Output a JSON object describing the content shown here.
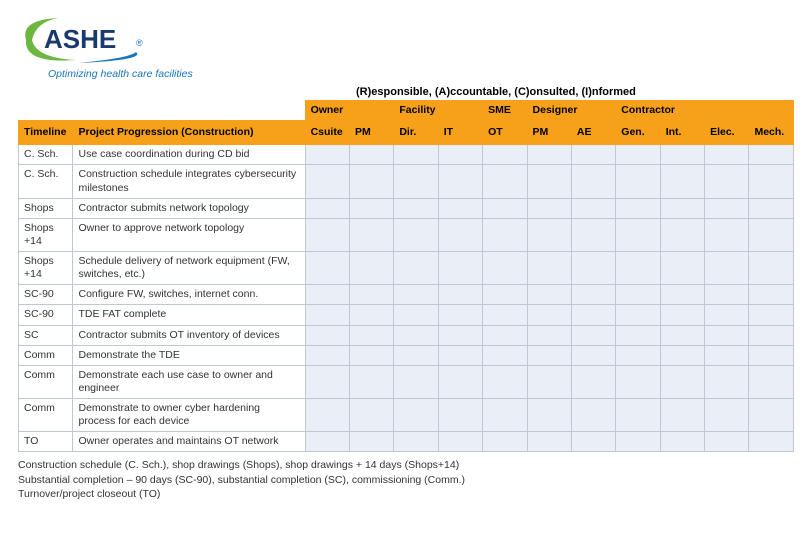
{
  "logo": {
    "name": "ASHE",
    "reg": "®",
    "tagline": "Optimizing health care facilities",
    "swoosh_color_outer": "#6bb742",
    "swoosh_color_inner": "#1a75bc",
    "text_color": "#1a3a6e"
  },
  "raci_caption": "(R)esponsible, (A)ccountable, (C)onsulted, (I)nformed",
  "groups": [
    {
      "label": "",
      "span": 2,
      "blank": true
    },
    {
      "label": "Owner",
      "span": 2
    },
    {
      "label": "Facility",
      "span": 2
    },
    {
      "label": "SME",
      "span": 1
    },
    {
      "label": "Designer",
      "span": 2
    },
    {
      "label": "Contractor",
      "span": 4
    }
  ],
  "sub_headers": [
    "Timeline",
    "Project Progression (Construction)",
    "Csuite",
    "PM",
    "Dir.",
    "IT",
    "OT",
    "PM",
    "AE",
    "Gen.",
    "Int.",
    "Elec.",
    "Mech."
  ],
  "rows": [
    {
      "timeline": "C. Sch.",
      "prog": "Use case coordination during CD bid"
    },
    {
      "timeline": "C. Sch.",
      "prog": "Construction schedule integrates cybersecurity milestones"
    },
    {
      "timeline": "Shops",
      "prog": "Contractor submits network topology"
    },
    {
      "timeline": "Shops +14",
      "prog": "Owner to approve network topology"
    },
    {
      "timeline": "Shops +14",
      "prog": "Schedule delivery of network equipment (FW, switches, etc.)"
    },
    {
      "timeline": "SC-90",
      "prog": "Configure FW, switches, internet conn."
    },
    {
      "timeline": "SC-90",
      "prog": "TDE FAT complete"
    },
    {
      "timeline": "SC",
      "prog": "Contractor submits OT inventory of devices"
    },
    {
      "timeline": "Comm",
      "prog": "Demonstrate the TDE"
    },
    {
      "timeline": "Comm",
      "prog": "Demonstrate each use case to owner and engineer"
    },
    {
      "timeline": "Comm",
      "prog": "Demonstrate to owner cyber hardening process for each device"
    },
    {
      "timeline": "TO",
      "prog": "Owner operates and maintains OT network"
    }
  ],
  "role_column_count": 11,
  "footnotes": [
    "Construction schedule (C. Sch.), shop drawings (Shops), shop drawings + 14 days (Shops+14)",
    "Substantial completion – 90 days (SC-90), substantial completion (SC), commissioning (Comm.)",
    "Turnover/project closeout (TO)"
  ],
  "colors": {
    "header_bg": "#f7a11a",
    "cell_bg": "#eaeef7",
    "border": "#bfc8d0",
    "text": "#333333"
  }
}
